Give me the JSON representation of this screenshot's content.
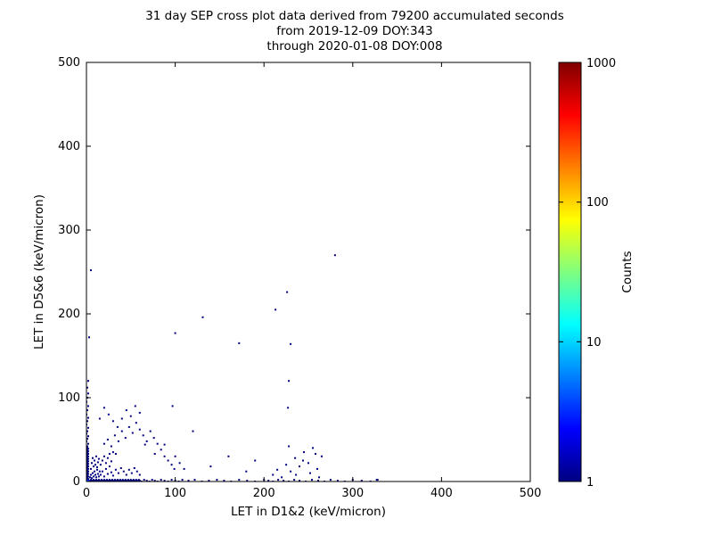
{
  "chart_data": {
    "type": "scatter",
    "title": "31 day SEP cross plot data derived from 79200 accumulated seconds from 2019-12-09 DOY:343 through 2020-01-08 DOY:008",
    "title_lines": [
      "31 day SEP cross plot data derived from 79200 accumulated seconds",
      "from 2019-12-09 DOY:343",
      "through 2020-01-08 DOY:008"
    ],
    "accumulated_seconds": 79200,
    "xlabel": "LET in D1&2 (keV/micron)",
    "ylabel": "LET in D5&6 (keV/micron)",
    "xlim": [
      0,
      500
    ],
    "ylim": [
      0,
      500
    ],
    "xticks": [
      0,
      100,
      200,
      300,
      400,
      500
    ],
    "yticks": [
      0,
      100,
      200,
      300,
      400,
      500
    ],
    "xtick_labels": [
      "0",
      "100",
      "200",
      "300",
      "400",
      "500"
    ],
    "ytick_labels": [
      "0",
      "100",
      "200",
      "300",
      "400",
      "500"
    ],
    "grid": false,
    "point_color_default": "#000080",
    "colorbar": {
      "label": "Counts",
      "scale": "log",
      "min": 1,
      "max": 1000,
      "ticks": [
        1,
        10,
        100,
        1000
      ],
      "tick_labels": [
        "1",
        "10",
        "100",
        "1000"
      ],
      "colormap": "jet",
      "stops": [
        {
          "offset": 0.0,
          "color": "#000080"
        },
        {
          "offset": 0.125,
          "color": "#0000ff"
        },
        {
          "offset": 0.375,
          "color": "#00ffff"
        },
        {
          "offset": 0.625,
          "color": "#ffff00"
        },
        {
          "offset": 0.875,
          "color": "#ff0000"
        },
        {
          "offset": 1.0,
          "color": "#800000"
        }
      ]
    },
    "points": [
      [
        0,
        1,
        5
      ],
      [
        1,
        0,
        4
      ],
      [
        2,
        2,
        3
      ],
      [
        3,
        1,
        3
      ],
      [
        4,
        0
      ],
      [
        5,
        2
      ],
      [
        6,
        1
      ],
      [
        7,
        0
      ],
      [
        8,
        2
      ],
      [
        9,
        1
      ],
      [
        10,
        0
      ],
      [
        11,
        2
      ],
      [
        12,
        1
      ],
      [
        13,
        0
      ],
      [
        14,
        2
      ],
      [
        15,
        1
      ],
      [
        16,
        0
      ],
      [
        17,
        2
      ],
      [
        18,
        1
      ],
      [
        19,
        0
      ],
      [
        20,
        2
      ],
      [
        21,
        1
      ],
      [
        22,
        0
      ],
      [
        23,
        2
      ],
      [
        24,
        1
      ],
      [
        25,
        0
      ],
      [
        26,
        2
      ],
      [
        27,
        1
      ],
      [
        28,
        0
      ],
      [
        29,
        2
      ],
      [
        30,
        1
      ],
      [
        31,
        0
      ],
      [
        32,
        2
      ],
      [
        33,
        1
      ],
      [
        34,
        0
      ],
      [
        35,
        2
      ],
      [
        36,
        1
      ],
      [
        37,
        0
      ],
      [
        38,
        2
      ],
      [
        39,
        1
      ],
      [
        40,
        0
      ],
      [
        41,
        2
      ],
      [
        42,
        1
      ],
      [
        43,
        0
      ],
      [
        44,
        2
      ],
      [
        45,
        1
      ],
      [
        46,
        0
      ],
      [
        47,
        2
      ],
      [
        48,
        1
      ],
      [
        49,
        0
      ],
      [
        50,
        2
      ],
      [
        51,
        1
      ],
      [
        52,
        0
      ],
      [
        53,
        2
      ],
      [
        54,
        1
      ],
      [
        55,
        0
      ],
      [
        56,
        2
      ],
      [
        57,
        1
      ],
      [
        58,
        0
      ],
      [
        59,
        2
      ],
      [
        60,
        1
      ],
      [
        62,
        0
      ],
      [
        65,
        2
      ],
      [
        68,
        1
      ],
      [
        71,
        0
      ],
      [
        74,
        2
      ],
      [
        77,
        1
      ],
      [
        80,
        0
      ],
      [
        84,
        2
      ],
      [
        88,
        1
      ],
      [
        92,
        0
      ],
      [
        96,
        2
      ],
      [
        100,
        1
      ],
      [
        104,
        0
      ],
      [
        108,
        2
      ],
      [
        115,
        1
      ],
      [
        122,
        2
      ],
      [
        130,
        0
      ],
      [
        138,
        1
      ],
      [
        147,
        2
      ],
      [
        155,
        1
      ],
      [
        163,
        0
      ],
      [
        172,
        2
      ],
      [
        181,
        1
      ],
      [
        190,
        0
      ],
      [
        200,
        2
      ],
      [
        205,
        1
      ],
      [
        210,
        0
      ],
      [
        216,
        2
      ],
      [
        222,
        1
      ],
      [
        228,
        0
      ],
      [
        234,
        2
      ],
      [
        240,
        1
      ],
      [
        247,
        0
      ],
      [
        254,
        2
      ],
      [
        261,
        1
      ],
      [
        268,
        0
      ],
      [
        275,
        2
      ],
      [
        283,
        1
      ],
      [
        291,
        0
      ],
      [
        300,
        2
      ],
      [
        310,
        1
      ],
      [
        320,
        0
      ],
      [
        327,
        2
      ],
      [
        1,
        1,
        4
      ],
      [
        0,
        2,
        3
      ],
      [
        2,
        3
      ],
      [
        1,
        4
      ],
      [
        0,
        5
      ],
      [
        2,
        6
      ],
      [
        1,
        7
      ],
      [
        0,
        8
      ],
      [
        2,
        9
      ],
      [
        1,
        10
      ],
      [
        0,
        11
      ],
      [
        2,
        12
      ],
      [
        1,
        13
      ],
      [
        0,
        14
      ],
      [
        2,
        15
      ],
      [
        1,
        16
      ],
      [
        0,
        17
      ],
      [
        2,
        18
      ],
      [
        1,
        19
      ],
      [
        0,
        20
      ],
      [
        2,
        21
      ],
      [
        1,
        22
      ],
      [
        0,
        23
      ],
      [
        2,
        24
      ],
      [
        1,
        25
      ],
      [
        0,
        26
      ],
      [
        2,
        27
      ],
      [
        1,
        28
      ],
      [
        0,
        29
      ],
      [
        2,
        30
      ],
      [
        1,
        31
      ],
      [
        0,
        32
      ],
      [
        2,
        33
      ],
      [
        1,
        34
      ],
      [
        0,
        35
      ],
      [
        2,
        36
      ],
      [
        1,
        37
      ],
      [
        0,
        38
      ],
      [
        2,
        39
      ],
      [
        1,
        40
      ],
      [
        1,
        42
      ],
      [
        2,
        45
      ],
      [
        0,
        48
      ],
      [
        1,
        51
      ],
      [
        2,
        54
      ],
      [
        0,
        57
      ],
      [
        1,
        60
      ],
      [
        2,
        64
      ],
      [
        0,
        68
      ],
      [
        1,
        72
      ],
      [
        2,
        76
      ],
      [
        0,
        80
      ],
      [
        1,
        85
      ],
      [
        2,
        90
      ],
      [
        0,
        95
      ],
      [
        1,
        100
      ],
      [
        2,
        105
      ],
      [
        1,
        112
      ],
      [
        2,
        120
      ],
      [
        3,
        172
      ],
      [
        5,
        252
      ],
      [
        4,
        5
      ],
      [
        5,
        8
      ],
      [
        6,
        4
      ],
      [
        7,
        10
      ],
      [
        8,
        6
      ],
      [
        9,
        12
      ],
      [
        10,
        8
      ],
      [
        11,
        5
      ],
      [
        12,
        14
      ],
      [
        13,
        9
      ],
      [
        14,
        6
      ],
      [
        15,
        12
      ],
      [
        5,
        15
      ],
      [
        8,
        18
      ],
      [
        10,
        20
      ],
      [
        12,
        17
      ],
      [
        6,
        22
      ],
      [
        9,
        25
      ],
      [
        13,
        23
      ],
      [
        7,
        28
      ],
      [
        11,
        30
      ],
      [
        14,
        27
      ],
      [
        16,
        8
      ],
      [
        18,
        12
      ],
      [
        20,
        6
      ],
      [
        22,
        15
      ],
      [
        24,
        9
      ],
      [
        26,
        18
      ],
      [
        28,
        11
      ],
      [
        30,
        7
      ],
      [
        16,
        20
      ],
      [
        18,
        25
      ],
      [
        20,
        30
      ],
      [
        22,
        22
      ],
      [
        24,
        28
      ],
      [
        26,
        33
      ],
      [
        28,
        24
      ],
      [
        30,
        35
      ],
      [
        33,
        14
      ],
      [
        36,
        10
      ],
      [
        39,
        16
      ],
      [
        42,
        12
      ],
      [
        45,
        8
      ],
      [
        48,
        14
      ],
      [
        51,
        10
      ],
      [
        54,
        16
      ],
      [
        57,
        12
      ],
      [
        60,
        8
      ],
      [
        20,
        45
      ],
      [
        24,
        50
      ],
      [
        28,
        42
      ],
      [
        32,
        55
      ],
      [
        36,
        48
      ],
      [
        40,
        60
      ],
      [
        44,
        52
      ],
      [
        48,
        65
      ],
      [
        52,
        58
      ],
      [
        56,
        70
      ],
      [
        60,
        62
      ],
      [
        64,
        55
      ],
      [
        68,
        48
      ],
      [
        72,
        60
      ],
      [
        76,
        52
      ],
      [
        80,
        45
      ],
      [
        84,
        38
      ],
      [
        88,
        30
      ],
      [
        92,
        25
      ],
      [
        96,
        20
      ],
      [
        100,
        30
      ],
      [
        105,
        22
      ],
      [
        110,
        15
      ],
      [
        35,
        65
      ],
      [
        30,
        72
      ],
      [
        25,
        80
      ],
      [
        20,
        88
      ],
      [
        15,
        75
      ],
      [
        40,
        75
      ],
      [
        45,
        85
      ],
      [
        50,
        78
      ],
      [
        55,
        90
      ],
      [
        60,
        82
      ],
      [
        33,
        33
      ],
      [
        66,
        44
      ],
      [
        77,
        33
      ],
      [
        88,
        44
      ],
      [
        99,
        15
      ],
      [
        97,
        90
      ],
      [
        120,
        60
      ],
      [
        140,
        18
      ],
      [
        160,
        30
      ],
      [
        180,
        12
      ],
      [
        190,
        25
      ],
      [
        210,
        8
      ],
      [
        215,
        14
      ],
      [
        220,
        5
      ],
      [
        225,
        20
      ],
      [
        230,
        12
      ],
      [
        235,
        28
      ],
      [
        240,
        18
      ],
      [
        245,
        35
      ],
      [
        250,
        22
      ],
      [
        255,
        40
      ],
      [
        260,
        15
      ],
      [
        265,
        30
      ],
      [
        228,
        42
      ],
      [
        236,
        8
      ],
      [
        244,
        25
      ],
      [
        252,
        10
      ],
      [
        258,
        33
      ],
      [
        262,
        5
      ],
      [
        280,
        270
      ],
      [
        226,
        226
      ],
      [
        213,
        205
      ],
      [
        131,
        196
      ],
      [
        100,
        177
      ],
      [
        172,
        165
      ],
      [
        230,
        164
      ],
      [
        228,
        120
      ],
      [
        227,
        88
      ],
      [
        328,
        2
      ]
    ]
  }
}
